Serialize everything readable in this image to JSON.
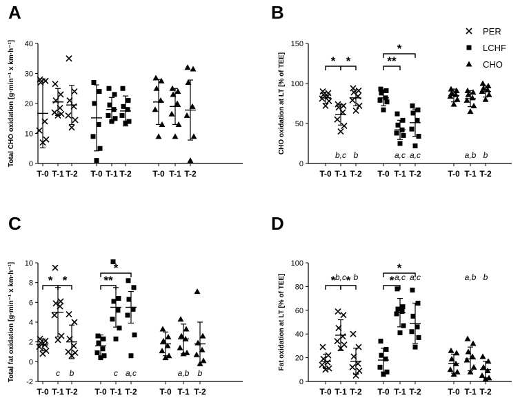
{
  "legend": [
    "PER",
    "LCHF",
    "CHO"
  ],
  "chart_data": [
    {
      "panel": "A",
      "type": "scatter",
      "ylabel": "Total  CHO oxidation [g·min⁻¹ x km·h⁻¹]",
      "ylim": [
        0,
        40
      ],
      "yticks": [
        0,
        10,
        20,
        30,
        40
      ],
      "timepoints": [
        "T-0",
        "T-1",
        "T-2"
      ],
      "groups": [
        {
          "name": "PER",
          "marker": "x",
          "series": [
            {
              "mean": 16.7,
              "sd": 11.5,
              "points": [
                28,
                27.5,
                27,
                14,
                11,
                8,
                7
              ]
            },
            {
              "mean": 20.5,
              "sd": 4.5,
              "points": [
                26.5,
                23,
                21,
                18.5,
                17,
                16.5,
                16
              ]
            },
            {
              "mean": 19.5,
              "sd": 6.5,
              "points": [
                35,
                24,
                21,
                19,
                16,
                14.5,
                12
              ]
            }
          ]
        },
        {
          "name": "LCHF",
          "marker": "square",
          "series": [
            {
              "mean": 15.2,
              "sd": 11,
              "points": [
                27,
                24,
                20,
                13,
                9,
                5,
                1
              ]
            },
            {
              "mean": 18,
              "sd": 4,
              "points": [
                25,
                23,
                19.5,
                18,
                16,
                15,
                14
              ]
            },
            {
              "mean": 17.5,
              "sd": 5,
              "points": [
                25,
                21,
                19,
                18,
                16,
                14,
                13.5
              ]
            }
          ]
        },
        {
          "name": "CHO",
          "marker": "triangle",
          "series": [
            {
              "mean": 20.5,
              "sd": 7.5,
              "points": [
                28.5,
                27.5,
                25,
                21,
                18,
                13,
                9
              ]
            },
            {
              "mean": 19,
              "sd": 6,
              "points": [
                25,
                24,
                23,
                20,
                16.5,
                13,
                9
              ]
            },
            {
              "mean": 17.8,
              "sd": 10,
              "points": [
                32,
                31.5,
                27,
                19,
                16,
                9,
                1
              ]
            }
          ]
        }
      ],
      "letters": [],
      "brackets": []
    },
    {
      "panel": "B",
      "type": "scatter",
      "ylabel": "CHO oxidation at LT [% of TEE]",
      "ylim": [
        0,
        150
      ],
      "yticks": [
        0,
        50,
        100,
        150
      ],
      "timepoints": [
        "T-0",
        "T-1",
        "T-2"
      ],
      "groups": [
        {
          "name": "PER",
          "marker": "x",
          "series": [
            {
              "mean": 82,
              "sd": 7,
              "points": [
                90,
                88,
                86,
                84,
                81,
                78,
                72
              ]
            },
            {
              "mean": 61,
              "sd": 13,
              "points": [
                74,
                72,
                70,
                64,
                55,
                47,
                40
              ]
            },
            {
              "mean": 82,
              "sd": 10,
              "points": [
                94,
                91,
                89,
                84,
                79,
                72,
                66
              ]
            }
          ]
        },
        {
          "name": "LCHF",
          "marker": "square",
          "series": [
            {
              "mean": 82,
              "sd": 10,
              "points": [
                93,
                91,
                88,
                82,
                79,
                77,
                67
              ]
            },
            {
              "mean": 42,
              "sd": 12,
              "points": [
                62,
                54,
                48,
                42,
                38,
                35,
                25
              ]
            },
            {
              "mean": 51,
              "sd": 17,
              "points": [
                72,
                67,
                63,
                54,
                43,
                34,
                22
              ]
            }
          ]
        },
        {
          "name": "CHO",
          "marker": "triangle",
          "series": [
            {
              "mean": 85,
              "sd": 8,
              "points": [
                93,
                91,
                88,
                86,
                84,
                80,
                74
              ]
            },
            {
              "mean": 81,
              "sd": 10,
              "points": [
                91,
                89,
                86,
                82,
                79,
                72,
                65
              ]
            },
            {
              "mean": 90,
              "sd": 7,
              "points": [
                100,
                97,
                94,
                92,
                90,
                86,
                80
              ]
            }
          ]
        }
      ],
      "letters": [
        {
          "group": 0,
          "tp": 1,
          "text": "b,c"
        },
        {
          "group": 0,
          "tp": 2,
          "text": "b"
        },
        {
          "group": 1,
          "tp": 1,
          "text": "a,c"
        },
        {
          "group": 1,
          "tp": 2,
          "text": "a,c"
        },
        {
          "group": 2,
          "tp": 1,
          "text": "a,b"
        },
        {
          "group": 2,
          "tp": 2,
          "text": "b"
        }
      ],
      "brackets": [
        {
          "group": 0,
          "from": 0,
          "to": 1,
          "level": 0,
          "label": "*"
        },
        {
          "group": 0,
          "from": 1,
          "to": 2,
          "level": 0,
          "label": "*"
        },
        {
          "group": 1,
          "from": 0,
          "to": 1,
          "level": 0,
          "label": "**"
        },
        {
          "group": 1,
          "from": 0,
          "to": 2,
          "level": 1,
          "label": "*"
        }
      ]
    },
    {
      "panel": "C",
      "type": "scatter",
      "ylabel": "Total fat oxidation [g·min⁻¹ x km·h⁻¹]",
      "ylim": [
        -2,
        10
      ],
      "yticks": [
        -2,
        0,
        2,
        4,
        6,
        8,
        10
      ],
      "timepoints": [
        "T-0",
        "T-1",
        "T-2"
      ],
      "groups": [
        {
          "name": "PER",
          "marker": "x",
          "series": [
            {
              "mean": 1.7,
              "sd": 0.6,
              "points": [
                2.3,
                2.1,
                1.9,
                1.7,
                1.5,
                1.1,
                0.8
              ]
            },
            {
              "mean": 5,
              "sd": 2.5,
              "points": [
                9.5,
                6.1,
                5.9,
                5.6,
                4.7,
                2.6,
                2.2
              ]
            },
            {
              "mean": 2,
              "sd": 1.7,
              "points": [
                4.8,
                4.0,
                2.3,
                1.6,
                1.0,
                0.9,
                0.6
              ]
            }
          ]
        },
        {
          "name": "LCHF",
          "marker": "square",
          "series": [
            {
              "mean": 1.6,
              "sd": 1.1,
              "points": [
                2.6,
                2.3,
                1.9,
                1.3,
                0.9,
                0.6,
                0.4
              ]
            },
            {
              "mean": 5.5,
              "sd": 2,
              "points": [
                10.1,
                6.4,
                6.1,
                5.2,
                4.3,
                3.4,
                2.3
              ]
            },
            {
              "mean": 5.5,
              "sd": 1.6,
              "points": [
                8.2,
                7.5,
                6.3,
                5.3,
                4.7,
                2.7,
                0.6
              ]
            }
          ]
        },
        {
          "name": "CHO",
          "marker": "triangle",
          "series": [
            {
              "mean": 1.8,
              "sd": 1.2,
              "points": [
                3.3,
                2.5,
                2.1,
                1.6,
                1.1,
                0.6,
                0.4
              ]
            },
            {
              "mean": 2.3,
              "sd": 1.5,
              "points": [
                4.3,
                3.3,
                2.6,
                2.3,
                1.4,
                0.9,
                0.8
              ]
            },
            {
              "mean": 1.8,
              "sd": 2.2,
              "points": [
                7.1,
                2.6,
                1.9,
                1.2,
                0.7,
                0.1,
                -0.2
              ]
            }
          ]
        }
      ],
      "letters": [
        {
          "group": 0,
          "tp": 1,
          "text": "c"
        },
        {
          "group": 0,
          "tp": 2,
          "text": "b"
        },
        {
          "group": 1,
          "tp": 1,
          "text": "c"
        },
        {
          "group": 1,
          "tp": 2,
          "text": "a,c"
        },
        {
          "group": 2,
          "tp": 1,
          "text": "a,b"
        },
        {
          "group": 2,
          "tp": 2,
          "text": "b"
        }
      ],
      "brackets": [
        {
          "group": 0,
          "from": 0,
          "to": 1,
          "level": 0,
          "label": "*"
        },
        {
          "group": 0,
          "from": 1,
          "to": 2,
          "level": 0,
          "label": "*"
        },
        {
          "group": 1,
          "from": 0,
          "to": 1,
          "level": 0,
          "label": "**"
        },
        {
          "group": 1,
          "from": 0,
          "to": 2,
          "level": 1,
          "label": "*"
        }
      ]
    },
    {
      "panel": "D",
      "type": "scatter",
      "ylabel": "Fat oxidation at LT [% of TEE]",
      "ylim": [
        0,
        100
      ],
      "yticks": [
        0,
        20,
        40,
        60,
        80,
        100
      ],
      "timepoints": [
        "T-0",
        "T-1",
        "T-2"
      ],
      "groups": [
        {
          "name": "PER",
          "marker": "x",
          "series": [
            {
              "mean": 17,
              "sd": 6,
              "points": [
                29,
                22,
                19,
                16,
                14,
                11,
                10
              ]
            },
            {
              "mean": 39,
              "sd": 13,
              "points": [
                59,
                56,
                45,
                38,
                34,
                31,
                28
              ]
            },
            {
              "mean": 17,
              "sd": 11,
              "points": [
                40,
                29,
                21,
                15,
                12,
                9,
                5
              ]
            }
          ]
        },
        {
          "name": "LCHF",
          "marker": "square",
          "series": [
            {
              "mean": 18,
              "sd": 10,
              "points": [
                34,
                27,
                22,
                19,
                12,
                8,
                6
              ]
            },
            {
              "mean": 58,
              "sd": 12,
              "points": [
                78,
                63,
                61,
                59,
                57,
                47,
                41
              ]
            },
            {
              "mean": 49,
              "sd": 17,
              "points": [
                77,
                66,
                55,
                46,
                42,
                37,
                29
              ]
            }
          ]
        },
        {
          "name": "CHO",
          "marker": "triangle",
          "series": [
            {
              "mean": 15,
              "sd": 8,
              "points": [
                26,
                24,
                19,
                15,
                10,
                8,
                6
              ]
            },
            {
              "mean": 19,
              "sd": 10,
              "points": [
                36,
                32,
                25,
                21,
                18,
                12,
                8
              ]
            },
            {
              "mean": 10,
              "sd": 7,
              "points": [
                21,
                17,
                12,
                9,
                5,
                3,
                2
              ]
            }
          ]
        }
      ],
      "letters": [
        {
          "group": 0,
          "tp": 1,
          "text": "b,c",
          "position": "top"
        },
        {
          "group": 0,
          "tp": 2,
          "text": "b",
          "position": "top"
        },
        {
          "group": 1,
          "tp": 1,
          "text": "a,c",
          "position": "top"
        },
        {
          "group": 1,
          "tp": 2,
          "text": "a,c",
          "position": "top"
        },
        {
          "group": 2,
          "tp": 1,
          "text": "a,b",
          "position": "top"
        },
        {
          "group": 2,
          "tp": 2,
          "text": "b",
          "position": "top"
        }
      ],
      "brackets": [
        {
          "group": 0,
          "from": 0,
          "to": 1,
          "level": 0,
          "label": "*"
        },
        {
          "group": 0,
          "from": 1,
          "to": 2,
          "level": 0,
          "label": "*"
        },
        {
          "group": 1,
          "from": 0,
          "to": 1,
          "level": 0,
          "label": "*"
        },
        {
          "group": 1,
          "from": 0,
          "to": 2,
          "level": 1,
          "label": "*"
        }
      ]
    }
  ]
}
